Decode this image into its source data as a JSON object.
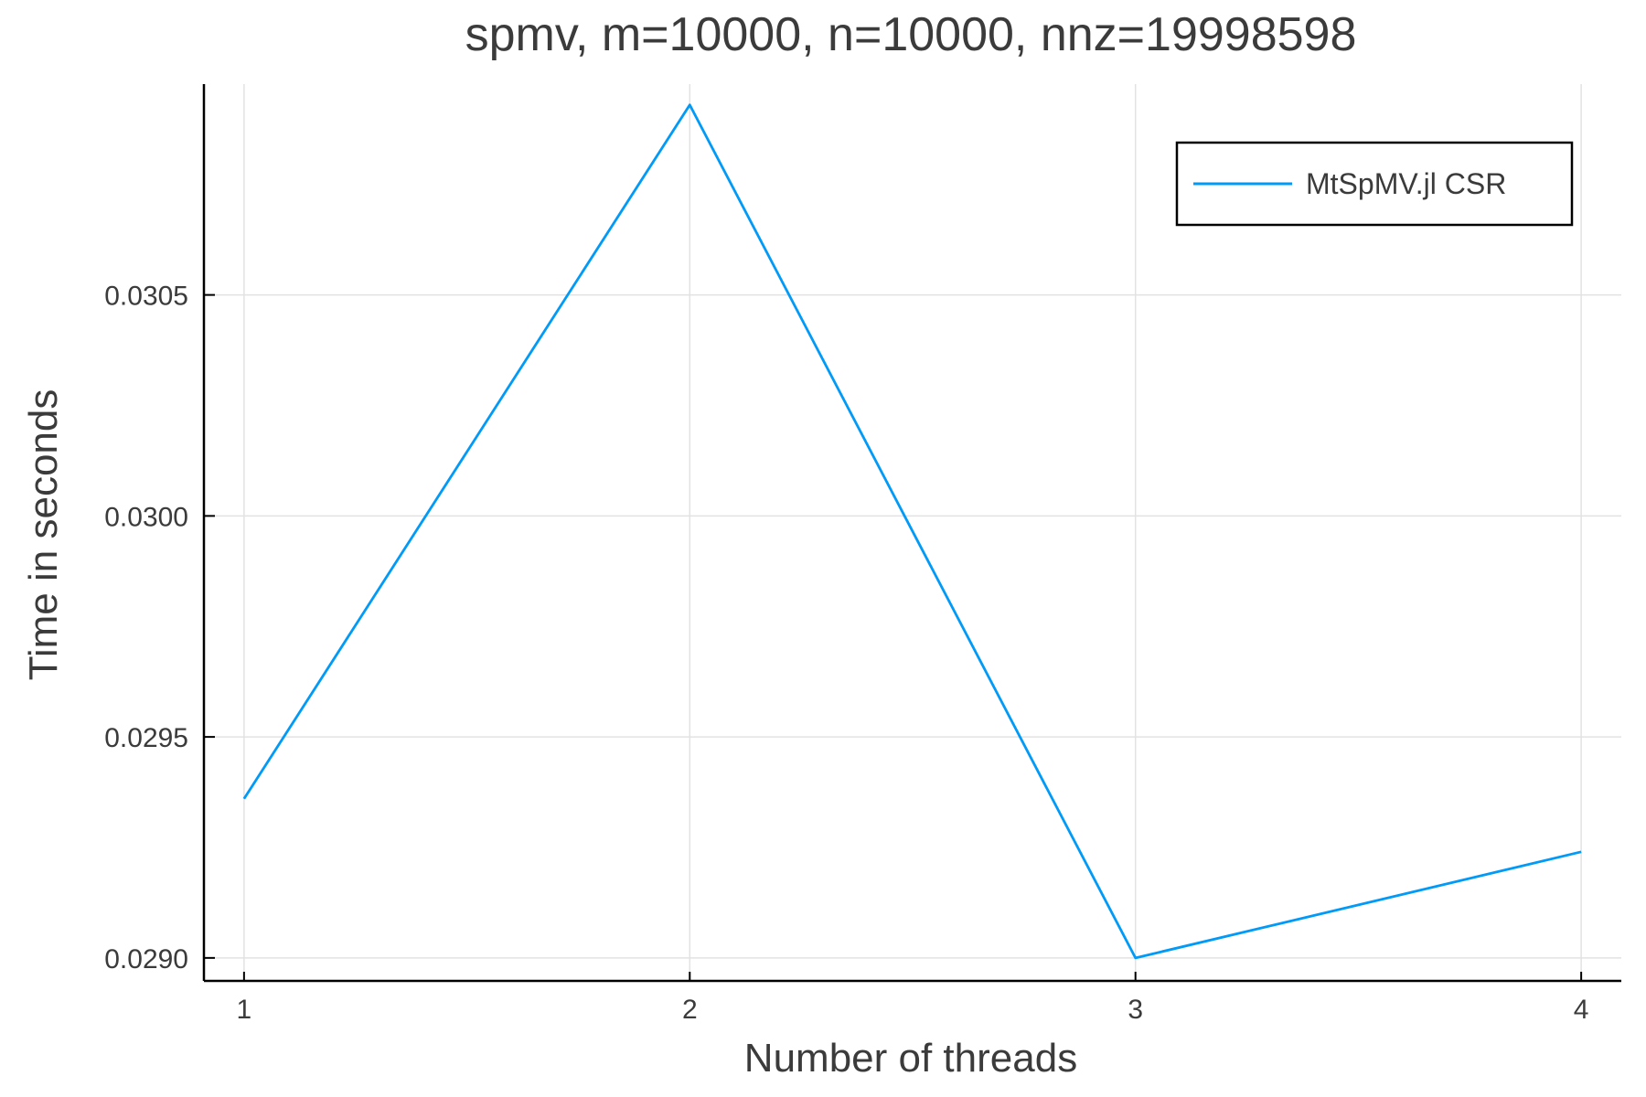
{
  "chart_data": {
    "type": "line",
    "title": "spmv, m=10000, n=10000, nnz=19998598",
    "xlabel": "Number of threads",
    "ylabel": "Time in seconds",
    "x": [
      1,
      2,
      3,
      4
    ],
    "series": [
      {
        "name": "MtSpMV.jl CSR",
        "values": [
          0.02936,
          0.03093,
          0.029,
          0.02924
        ],
        "color": "#009af9"
      }
    ],
    "xticks": [
      1,
      2,
      3,
      4
    ],
    "xtick_labels": [
      "1",
      "2",
      "3",
      "4"
    ],
    "yticks": [
      0.029,
      0.0295,
      0.03,
      0.0305
    ],
    "ytick_labels": [
      "0.0290",
      "0.0295",
      "0.0300",
      "0.0305"
    ],
    "xlim": [
      0.91,
      4.09
    ],
    "ylim": [
      0.028948,
      0.030977
    ],
    "grid": true,
    "legend_position": "top-right"
  }
}
